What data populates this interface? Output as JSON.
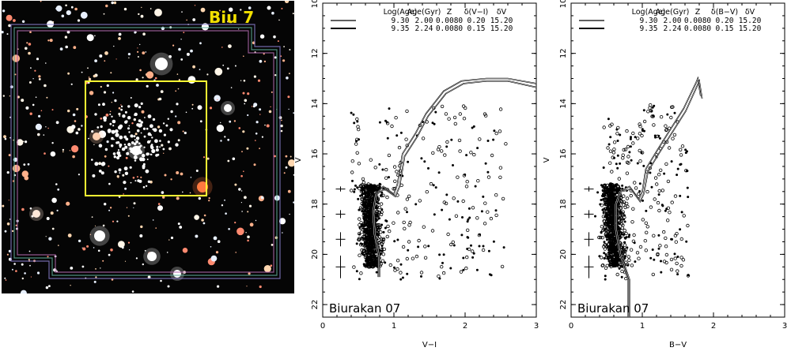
{
  "image_panel": {
    "label": "Biu 7",
    "label_color": "#f2e000",
    "box_color": "#ffff33",
    "background": "#050505"
  },
  "chart_data": [
    {
      "type": "scatter",
      "title": "",
      "annotation": "Biurakan  07",
      "xlabel": "V−I",
      "ylabel": "V",
      "xlim": [
        0,
        3
      ],
      "ylim": [
        22.5,
        10
      ],
      "xticks": [
        0,
        1,
        2,
        3
      ],
      "yticks": [
        10,
        12,
        14,
        16,
        18,
        20,
        22
      ],
      "grid": false,
      "legend": {
        "placement": "top",
        "header": [
          "Log(Age)",
          "Age(Gyr)",
          "Z",
          "δ(V−I)",
          "δV"
        ],
        "rows": [
          [
            "9.30",
            "2.00",
            "0.0080",
            "0.20",
            "15.20"
          ],
          [
            "9.35",
            "2.24",
            "0.0080",
            "0.15",
            "15.20"
          ]
        ]
      },
      "error_bars": [
        {
          "v": 17.4,
          "err": 0.1
        },
        {
          "v": 18.4,
          "err": 0.16
        },
        {
          "v": 19.4,
          "err": 0.28
        },
        {
          "v": 20.5,
          "err": 0.45
        }
      ],
      "isochrones": [
        {
          "points": [
            [
              0.78,
              20.9
            ],
            [
              0.78,
              20.1
            ],
            [
              0.72,
              19.2
            ],
            [
              0.7,
              18.3
            ],
            [
              0.74,
              17.6
            ],
            [
              0.85,
              17.3
            ],
            [
              1.0,
              17.6
            ],
            [
              1.05,
              17.2
            ],
            [
              1.12,
              16.0
            ],
            [
              1.3,
              15.2
            ],
            [
              1.45,
              14.4
            ],
            [
              1.7,
              13.5
            ],
            [
              1.95,
              13.1
            ],
            [
              2.3,
              13.0
            ],
            [
              2.6,
              13.0
            ],
            [
              3.0,
              13.2
            ]
          ]
        },
        {
          "points": [
            [
              0.8,
              20.9
            ],
            [
              0.8,
              20.1
            ],
            [
              0.74,
              19.2
            ],
            [
              0.72,
              18.3
            ],
            [
              0.76,
              17.6
            ],
            [
              0.87,
              17.4
            ],
            [
              1.02,
              17.7
            ],
            [
              1.08,
              17.3
            ],
            [
              1.15,
              16.1
            ],
            [
              1.33,
              15.3
            ],
            [
              1.48,
              14.5
            ],
            [
              1.73,
              13.6
            ],
            [
              1.98,
              13.2
            ],
            [
              2.3,
              13.1
            ],
            [
              2.6,
              13.1
            ],
            [
              3.0,
              13.35
            ]
          ]
        }
      ]
    },
    {
      "type": "scatter",
      "title": "",
      "annotation": "Biurakan  07",
      "xlabel": "B−V",
      "ylabel": "V",
      "xlim": [
        0,
        3
      ],
      "ylim": [
        22.5,
        10
      ],
      "xticks": [
        0,
        1,
        2,
        3
      ],
      "yticks": [
        10,
        12,
        14,
        16,
        18,
        20,
        22
      ],
      "grid": false,
      "legend": {
        "placement": "top",
        "header": [
          "Log(Age)",
          "Age(Gyr)",
          "Z",
          "δ(B−V)",
          "δV"
        ],
        "rows": [
          [
            "9.30",
            "2.00",
            "0.0080",
            "0.20",
            "15.20"
          ],
          [
            "9.35",
            "2.24",
            "0.0080",
            "0.15",
            "15.20"
          ]
        ]
      },
      "error_bars": [
        {
          "v": 17.4,
          "err": 0.1
        },
        {
          "v": 18.4,
          "err": 0.16
        },
        {
          "v": 19.4,
          "err": 0.28
        },
        {
          "v": 20.5,
          "err": 0.45
        }
      ],
      "isochrones": [
        {
          "points": [
            [
              0.8,
              22.5
            ],
            [
              0.8,
              21.0
            ],
            [
              0.68,
              20.0
            ],
            [
              0.62,
              19.0
            ],
            [
              0.62,
              18.0
            ],
            [
              0.68,
              17.5
            ],
            [
              0.82,
              17.3
            ],
            [
              0.95,
              17.8
            ],
            [
              1.0,
              17.5
            ],
            [
              1.05,
              16.6
            ],
            [
              1.2,
              15.9
            ],
            [
              1.4,
              15.0
            ],
            [
              1.58,
              14.2
            ],
            [
              1.75,
              13.2
            ],
            [
              1.78,
              13.0
            ],
            [
              1.82,
              13.7
            ]
          ]
        },
        {
          "points": [
            [
              0.82,
              22.5
            ],
            [
              0.82,
              21.0
            ],
            [
              0.7,
              20.0
            ],
            [
              0.64,
              19.0
            ],
            [
              0.64,
              18.0
            ],
            [
              0.7,
              17.5
            ],
            [
              0.84,
              17.4
            ],
            [
              0.97,
              17.9
            ],
            [
              1.02,
              17.6
            ],
            [
              1.08,
              16.7
            ],
            [
              1.23,
              16.0
            ],
            [
              1.43,
              15.1
            ],
            [
              1.61,
              14.3
            ],
            [
              1.77,
              13.3
            ],
            [
              1.8,
              13.1
            ],
            [
              1.84,
              13.8
            ]
          ]
        }
      ]
    }
  ]
}
